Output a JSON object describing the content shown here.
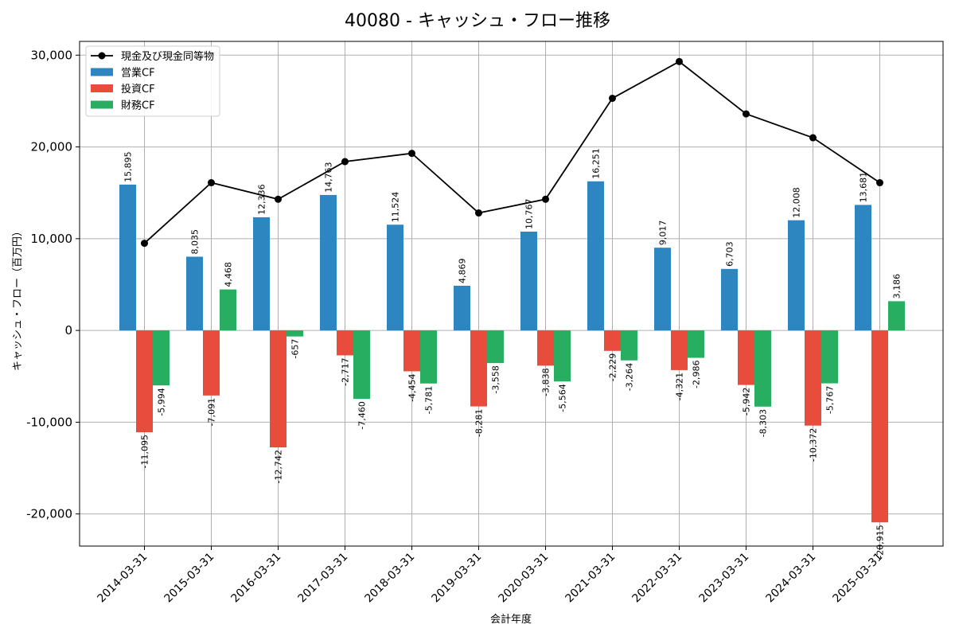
{
  "chart_data": {
    "type": "bar",
    "title": "40080 - キャッシュ・フロー推移",
    "xlabel": "会計年度",
    "ylabel": "キャッシュ・フロー（百万円）",
    "ylim": [
      -23500,
      31500
    ],
    "yticks": [
      30000,
      20000,
      10000,
      0,
      -10000,
      -20000
    ],
    "ytick_labels": [
      "30,000",
      "20,000",
      "10,000",
      "0",
      "-10,000",
      "-20,000"
    ],
    "grid": true,
    "legend_position": "top-left",
    "categories": [
      "2014-03-31",
      "2015-03-31",
      "2016-03-31",
      "2017-03-31",
      "2018-03-31",
      "2019-03-31",
      "2020-03-31",
      "2021-03-31",
      "2022-03-31",
      "2023-03-31",
      "2024-03-31",
      "2025-03-31"
    ],
    "series": [
      {
        "name": "営業CF",
        "kind": "bar",
        "color": "#2e86c1",
        "values": [
          15895,
          8035,
          12336,
          14763,
          11524,
          4869,
          10767,
          16251,
          9017,
          6703,
          12008,
          13681
        ],
        "labels": [
          "15,895",
          "8,035",
          "12,336",
          "14,763",
          "11,524",
          "4,869",
          "10,767",
          "16,251",
          "9,017",
          "6,703",
          "12,008",
          "13,681"
        ]
      },
      {
        "name": "投資CF",
        "kind": "bar",
        "color": "#e74c3c",
        "values": [
          -11095,
          -7091,
          -12742,
          -2717,
          -4454,
          -8281,
          -3838,
          -2229,
          -4321,
          -5942,
          -10372,
          -20915
        ],
        "labels": [
          "-11,095",
          "-7,091",
          "-12,742",
          "-2,717",
          "-4,454",
          "-8,281",
          "-3,838",
          "-2,229",
          "-4,321",
          "-5,942",
          "-10,372",
          "-20,915"
        ]
      },
      {
        "name": "財務CF",
        "kind": "bar",
        "color": "#27ae60",
        "values": [
          -5994,
          4468,
          -657,
          -7460,
          -5781,
          -3558,
          -5564,
          -3264,
          -2986,
          -8303,
          -5767,
          3186
        ],
        "labels": [
          "-5,994",
          "4,468",
          "-657",
          "-7,460",
          "-5,781",
          "-3,558",
          "-5,564",
          "-3,264",
          "-2,986",
          "-8,303",
          "-5,767",
          "3,186"
        ]
      },
      {
        "name": "現金及び現金同等物",
        "kind": "line",
        "color": "#000000",
        "values": [
          9500,
          16100,
          14300,
          18400,
          19300,
          12800,
          14300,
          25300,
          29300,
          23600,
          21000,
          16100
        ]
      }
    ]
  }
}
